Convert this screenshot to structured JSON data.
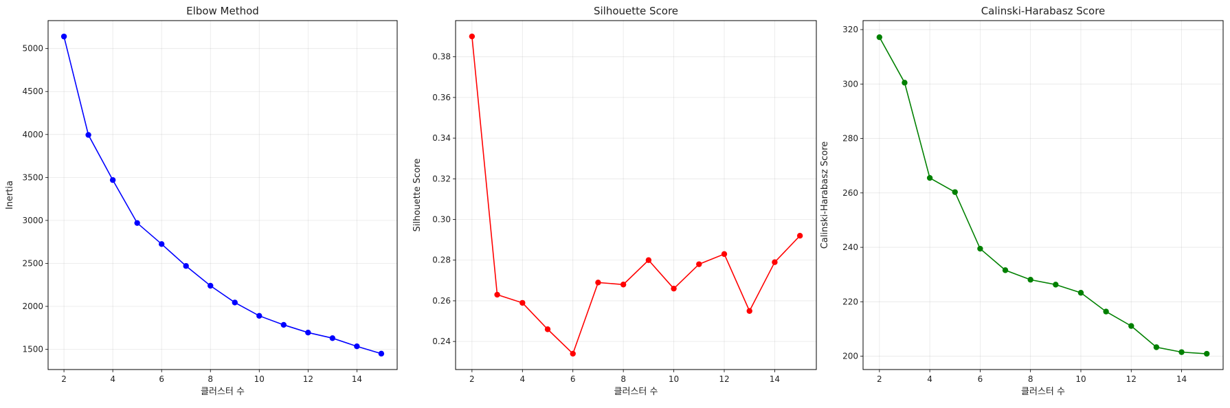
{
  "chart_data": [
    {
      "type": "line",
      "title": "Elbow Method",
      "xlabel": "클러스터 수",
      "ylabel": "Inertia",
      "color": "#0000ff",
      "x": [
        2,
        3,
        4,
        5,
        6,
        7,
        8,
        9,
        10,
        11,
        12,
        13,
        14,
        15
      ],
      "values": [
        5140,
        3995,
        3470,
        2970,
        2725,
        2470,
        2240,
        2045,
        1890,
        1785,
        1695,
        1630,
        1535,
        1450
      ],
      "xlim": [
        1.35,
        15.65
      ],
      "ylim": [
        1265,
        5325
      ],
      "xticks": [
        2,
        4,
        6,
        8,
        10,
        12,
        14
      ],
      "yticks": [
        1500,
        2000,
        2500,
        3000,
        3500,
        4000,
        4500,
        5000
      ],
      "xtick_labels": [
        "2",
        "4",
        "6",
        "8",
        "10",
        "12",
        "14"
      ],
      "ytick_labels": [
        "1500",
        "2000",
        "2500",
        "3000",
        "3500",
        "4000",
        "4500",
        "5000"
      ],
      "grid": true
    },
    {
      "type": "line",
      "title": "Silhouette Score",
      "xlabel": "클러스터 수",
      "ylabel": "Silhouette Score",
      "color": "#ff0000",
      "x": [
        2,
        3,
        4,
        5,
        6,
        7,
        8,
        9,
        10,
        11,
        12,
        13,
        14,
        15
      ],
      "values": [
        0.39,
        0.263,
        0.259,
        0.246,
        0.234,
        0.269,
        0.268,
        0.28,
        0.266,
        0.278,
        0.283,
        0.255,
        0.279,
        0.292
      ],
      "xlim": [
        1.35,
        15.65
      ],
      "ylim": [
        0.2262,
        0.3978
      ],
      "xticks": [
        2,
        4,
        6,
        8,
        10,
        12,
        14
      ],
      "yticks": [
        0.24,
        0.26,
        0.28,
        0.3,
        0.32,
        0.34,
        0.36,
        0.38
      ],
      "xtick_labels": [
        "2",
        "4",
        "6",
        "8",
        "10",
        "12",
        "14"
      ],
      "ytick_labels": [
        "0.24",
        "0.26",
        "0.28",
        "0.30",
        "0.32",
        "0.34",
        "0.36",
        "0.38"
      ],
      "grid": true
    },
    {
      "type": "line",
      "title": "Calinski-Harabasz Score",
      "xlabel": "클러스터 수",
      "ylabel": "Calinski-Harabasz Score",
      "color": "#008000",
      "x": [
        2,
        3,
        4,
        5,
        6,
        7,
        8,
        9,
        10,
        11,
        12,
        13,
        14,
        15
      ],
      "values": [
        317.2,
        300.5,
        265.5,
        260.3,
        239.5,
        231.6,
        228.1,
        226.3,
        223.3,
        216.4,
        211.1,
        203.3,
        201.5,
        200.9
      ],
      "xlim": [
        1.35,
        15.65
      ],
      "ylim": [
        195.1,
        323.3
      ],
      "xticks": [
        2,
        4,
        6,
        8,
        10,
        12,
        14
      ],
      "yticks": [
        200,
        220,
        240,
        260,
        280,
        300,
        320
      ],
      "xtick_labels": [
        "2",
        "4",
        "6",
        "8",
        "10",
        "12",
        "14"
      ],
      "ytick_labels": [
        "200",
        "220",
        "240",
        "260",
        "280",
        "300",
        "320"
      ],
      "grid": true
    }
  ]
}
